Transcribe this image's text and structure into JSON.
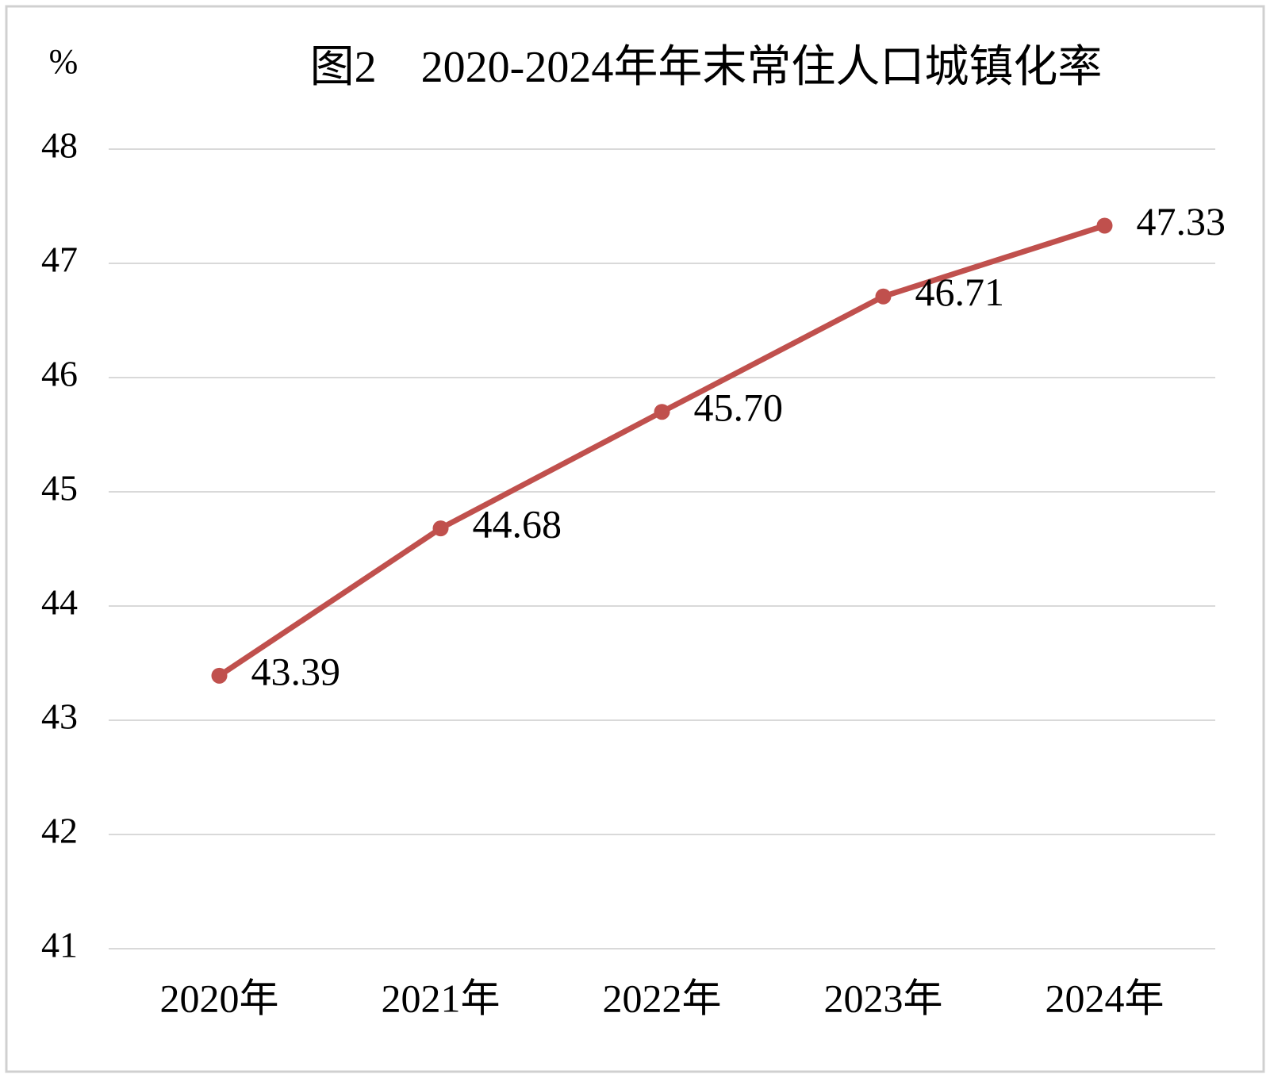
{
  "chart_data": {
    "type": "line",
    "title": "图2　2020-2024年年末常住人口城镇化率",
    "y_label": "%",
    "categories": [
      "2020年",
      "2021年",
      "2022年",
      "2023年",
      "2024年"
    ],
    "values": [
      43.39,
      44.68,
      45.7,
      46.71,
      47.33
    ],
    "value_labels": [
      "43.39",
      "44.68",
      "45.70",
      "46.71",
      "47.33"
    ],
    "color": "#c0504d",
    "ylim": [
      41,
      48
    ],
    "yticks": [
      41,
      42,
      43,
      44,
      45,
      46,
      47,
      48
    ],
    "grid": true
  }
}
